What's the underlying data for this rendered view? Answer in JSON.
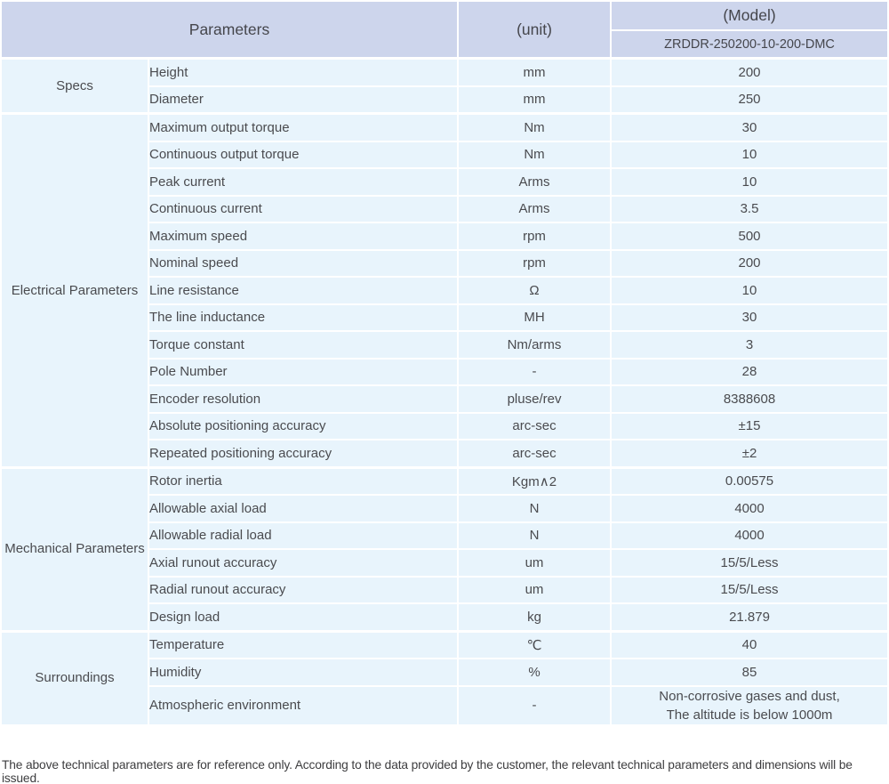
{
  "table": {
    "header": {
      "parameters": "Parameters",
      "unit": "(unit)",
      "model": "(Model)",
      "model_value": "ZRDDR-250200-10-200-DMC"
    },
    "colors": {
      "header_bg": "#cdd5ec",
      "body_bg": "#e8f4fc",
      "divider": "#ffffff",
      "text": "#4a4b4f"
    },
    "sections": [
      {
        "label": "Specs",
        "rows": [
          {
            "parameter": "Height",
            "unit": "mm",
            "value": "200"
          },
          {
            "parameter": "Diameter",
            "unit": "mm",
            "value": "250"
          }
        ]
      },
      {
        "label": "Electrical Parameters",
        "rows": [
          {
            "parameter": "Maximum output torque",
            "unit": "Nm",
            "value": "30"
          },
          {
            "parameter": "Continuous output torque",
            "unit": "Nm",
            "value": "10"
          },
          {
            "parameter": "Peak current",
            "unit": "Arms",
            "value": "10"
          },
          {
            "parameter": "Continuous current",
            "unit": "Arms",
            "value": "3.5"
          },
          {
            "parameter": "Maximum speed",
            "unit": "rpm",
            "value": "500"
          },
          {
            "parameter": "Nominal speed",
            "unit": "rpm",
            "value": "200"
          },
          {
            "parameter": "Line resistance",
            "unit": "Ω",
            "value": "10"
          },
          {
            "parameter": "The line inductance",
            "unit": "MH",
            "value": "30"
          },
          {
            "parameter": "Torque constant",
            "unit": "Nm/arms",
            "value": "3"
          },
          {
            "parameter": "Pole Number",
            "unit": "-",
            "value": "28"
          },
          {
            "parameter": "Encoder resolution",
            "unit": "pluse/rev",
            "value": "8388608"
          },
          {
            "parameter": "Absolute positioning accuracy",
            "unit": "arc-sec",
            "value": "±15"
          },
          {
            "parameter": "Repeated positioning accuracy",
            "unit": "arc-sec",
            "value": "±2"
          }
        ]
      },
      {
        "label": "Mechanical Parameters",
        "rows": [
          {
            "parameter": "Rotor inertia",
            "unit": "Kgm∧2",
            "value": "0.00575"
          },
          {
            "parameter": "Allowable axial load",
            "unit": "N",
            "value": "4000"
          },
          {
            "parameter": "Allowable radial load",
            "unit": "N",
            "value": "4000"
          },
          {
            "parameter": "Axial runout accuracy",
            "unit": "um",
            "value": "15/5/Less"
          },
          {
            "parameter": "Radial runout accuracy",
            "unit": "um",
            "value": "15/5/Less"
          },
          {
            "parameter": "Design load",
            "unit": "kg",
            "value": "21.879"
          }
        ]
      },
      {
        "label": "Surroundings",
        "rows": [
          {
            "parameter": "Temperature",
            "unit": "℃",
            "value": "40"
          },
          {
            "parameter": "Humidity",
            "unit": "%",
            "value": "85"
          },
          {
            "parameter": "Atmospheric environment",
            "unit": "-",
            "value": "Non-corrosive gases and dust,\nThe altitude is below 1000m"
          }
        ]
      }
    ]
  },
  "footnote": "The above technical parameters are for reference only. According to the data provided by the customer, the relevant technical parameters and dimensions will be issued."
}
